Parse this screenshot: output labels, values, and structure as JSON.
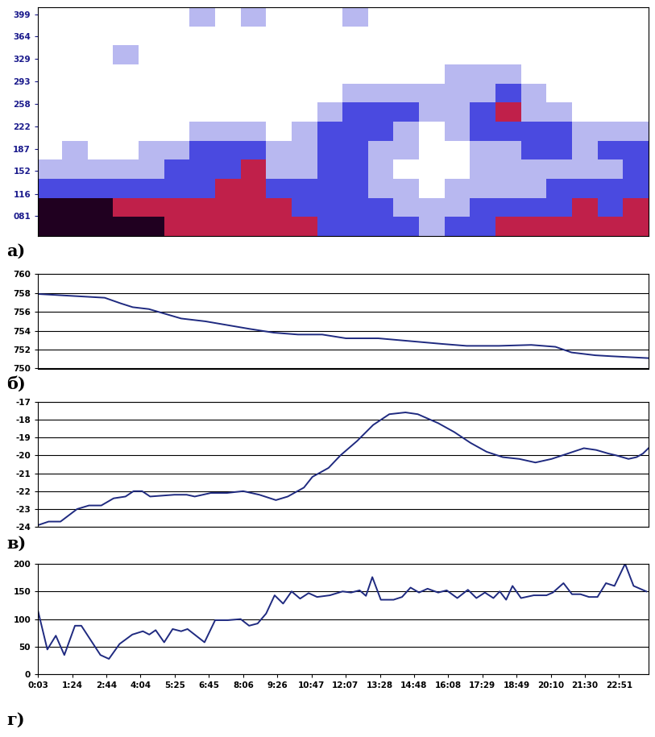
{
  "chart_data": [
    {
      "type": "heatmap",
      "title": "а)",
      "tick_labels": "y",
      "xlim": [
        3,
        1440
      ],
      "ylim": [
        50,
        410
      ],
      "yticks": [
        {
          "value": 81,
          "label": "081"
        },
        116,
        152,
        187,
        222,
        258,
        293,
        329,
        364,
        399
      ],
      "x_edges": [
        0,
        60,
        120,
        180,
        240,
        300,
        360,
        420,
        480,
        540,
        600,
        660,
        720,
        780,
        840,
        900,
        960,
        1020,
        1080,
        1140,
        1200,
        1260,
        1320,
        1380,
        1440
      ],
      "y_edges": [
        50,
        80,
        110,
        140,
        170,
        200,
        230,
        260,
        290,
        320,
        350,
        380,
        410
      ],
      "colors": [
        "#ffffff",
        "#b8b8f0",
        "#4a4ae0",
        "#c0204a",
        "#200020"
      ],
      "cells": [
        [
          4,
          4,
          2,
          1,
          0,
          0,
          0,
          0,
          0,
          0,
          0,
          0
        ],
        [
          4,
          4,
          2,
          1,
          1,
          0,
          0,
          0,
          0,
          0,
          0,
          0
        ],
        [
          4,
          4,
          2,
          1,
          0,
          0,
          0,
          0,
          0,
          0,
          0,
          0
        ],
        [
          4,
          3,
          2,
          1,
          0,
          0,
          0,
          0,
          0,
          1,
          0,
          0
        ],
        [
          4,
          3,
          2,
          1,
          1,
          0,
          0,
          0,
          0,
          0,
          0,
          0
        ],
        [
          3,
          3,
          2,
          2,
          1,
          0,
          0,
          0,
          0,
          0,
          0,
          0
        ],
        [
          3,
          3,
          2,
          2,
          2,
          1,
          0,
          0,
          0,
          0,
          0,
          1
        ],
        [
          3,
          3,
          3,
          2,
          2,
          1,
          0,
          0,
          0,
          0,
          0,
          0
        ],
        [
          3,
          3,
          3,
          3,
          2,
          1,
          0,
          0,
          0,
          0,
          0,
          1
        ],
        [
          3,
          3,
          2,
          1,
          1,
          0,
          0,
          0,
          0,
          0,
          0,
          0
        ],
        [
          3,
          2,
          2,
          1,
          1,
          1,
          0,
          0,
          0,
          0,
          0,
          0
        ],
        [
          2,
          2,
          2,
          2,
          2,
          2,
          1,
          0,
          0,
          0,
          0,
          0
        ],
        [
          2,
          2,
          2,
          2,
          2,
          2,
          2,
          1,
          0,
          0,
          0,
          1
        ],
        [
          2,
          2,
          1,
          1,
          1,
          2,
          2,
          1,
          0,
          0,
          0,
          0
        ],
        [
          2,
          1,
          1,
          0,
          1,
          1,
          2,
          1,
          0,
          0,
          0,
          0
        ],
        [
          1,
          1,
          0,
          0,
          0,
          0,
          1,
          1,
          0,
          0,
          0,
          0
        ],
        [
          2,
          1,
          1,
          0,
          0,
          1,
          1,
          1,
          1,
          0,
          0,
          0
        ],
        [
          2,
          2,
          1,
          1,
          1,
          2,
          2,
          1,
          1,
          0,
          0,
          0
        ],
        [
          3,
          2,
          1,
          1,
          1,
          2,
          3,
          2,
          1,
          0,
          0,
          0
        ],
        [
          3,
          2,
          1,
          1,
          2,
          2,
          1,
          1,
          0,
          0,
          0,
          0
        ],
        [
          3,
          2,
          2,
          1,
          2,
          2,
          1,
          0,
          0,
          0,
          0,
          0
        ],
        [
          3,
          3,
          2,
          1,
          1,
          1,
          0,
          0,
          0,
          0,
          0,
          0
        ],
        [
          3,
          2,
          2,
          1,
          2,
          1,
          0,
          0,
          0,
          0,
          0,
          0
        ],
        [
          3,
          3,
          2,
          2,
          2,
          1,
          0,
          0,
          0,
          0,
          0,
          0
        ]
      ]
    },
    {
      "type": "line",
      "title": "б)",
      "tick_labels": "y",
      "grid": true,
      "color": "#1f2a80",
      "xlim": [
        3,
        1440
      ],
      "ylim": [
        750,
        760
      ],
      "yticks": [
        750,
        752,
        754,
        756,
        758,
        760
      ],
      "x": [
        3,
        160,
        198,
        226,
        264,
        340,
        397,
        501,
        558,
        615,
        672,
        728,
        804,
        880,
        956,
        1012,
        1088,
        1164,
        1221,
        1259,
        1315,
        1353,
        1440
      ],
      "values": [
        757.9,
        757.5,
        756.9,
        756.5,
        756.3,
        755.3,
        755.0,
        754.2,
        753.8,
        753.6,
        753.6,
        753.2,
        753.2,
        752.9,
        752.6,
        752.4,
        752.4,
        752.5,
        752.3,
        751.7,
        751.4,
        751.3,
        751.1
      ]
    },
    {
      "type": "line",
      "title": "в)",
      "tick_labels": "y",
      "grid": true,
      "color": "#1f2a80",
      "xlim": [
        3,
        1440
      ],
      "ylim": [
        -24,
        -17
      ],
      "yticks": [
        -24,
        -23,
        -22,
        -21,
        -20,
        -19,
        -18,
        -17
      ],
      "x": [
        3,
        28,
        56,
        95,
        123,
        152,
        181,
        209,
        228,
        248,
        267,
        324,
        353,
        372,
        410,
        448,
        486,
        524,
        563,
        591,
        629,
        649,
        687,
        715,
        754,
        792,
        830,
        868,
        897,
        945,
        983,
        1021,
        1059,
        1097,
        1136,
        1174,
        1212,
        1250,
        1288,
        1317,
        1346,
        1364,
        1393,
        1412,
        1427,
        1440
      ],
      "values": [
        -23.9,
        -23.7,
        -23.7,
        -23.0,
        -22.8,
        -22.8,
        -22.4,
        -22.3,
        -22.0,
        -22.0,
        -22.3,
        -22.2,
        -22.2,
        -22.3,
        -22.1,
        -22.1,
        -22.0,
        -22.2,
        -22.5,
        -22.3,
        -21.8,
        -21.2,
        -20.7,
        -20.0,
        -19.2,
        -18.3,
        -17.7,
        -17.6,
        -17.7,
        -18.2,
        -18.7,
        -19.3,
        -19.8,
        -20.1,
        -20.2,
        -20.4,
        -20.2,
        -19.9,
        -19.6,
        -19.7,
        -19.9,
        -20.0,
        -20.2,
        -20.1,
        -19.9,
        -19.6
      ]
    },
    {
      "type": "line",
      "title": "г)",
      "grid": true,
      "color": "#1f2a80",
      "xlim": [
        3,
        1440
      ],
      "ylim": [
        0,
        200
      ],
      "yticks": [
        0,
        50,
        100,
        150,
        200
      ],
      "xticks": [
        {
          "value": 3,
          "label": "0:03"
        },
        {
          "value": 84,
          "label": "1:24"
        },
        {
          "value": 164,
          "label": "2:44"
        },
        {
          "value": 244,
          "label": "4:04"
        },
        {
          "value": 325,
          "label": "5:25"
        },
        {
          "value": 405,
          "label": "6:45"
        },
        {
          "value": 486,
          "label": "8:06"
        },
        {
          "value": 566,
          "label": "9:26"
        },
        {
          "value": 647,
          "label": "10:47"
        },
        {
          "value": 727,
          "label": "12:07"
        },
        {
          "value": 808,
          "label": "13:28"
        },
        {
          "value": 888,
          "label": "14:48"
        },
        {
          "value": 968,
          "label": "16:08"
        },
        {
          "value": 1049,
          "label": "17:29"
        },
        {
          "value": 1129,
          "label": "18:49"
        },
        {
          "value": 1210,
          "label": "20:10"
        },
        {
          "value": 1290,
          "label": "21:30"
        },
        {
          "value": 1371,
          "label": "22:51"
        }
      ],
      "x": [
        3,
        25,
        45,
        65,
        90,
        105,
        150,
        170,
        195,
        225,
        250,
        265,
        280,
        300,
        320,
        340,
        355,
        375,
        395,
        420,
        450,
        480,
        500,
        520,
        540,
        560,
        580,
        600,
        620,
        640,
        660,
        690,
        720,
        740,
        760,
        775,
        790,
        810,
        840,
        860,
        880,
        900,
        920,
        945,
        965,
        990,
        1015,
        1035,
        1055,
        1075,
        1090,
        1105,
        1120,
        1140,
        1170,
        1200,
        1215,
        1240,
        1260,
        1280,
        1300,
        1320,
        1340,
        1360,
        1385,
        1405,
        1435
      ],
      "values": [
        115,
        45,
        70,
        35,
        88,
        88,
        35,
        28,
        55,
        72,
        78,
        72,
        80,
        58,
        82,
        78,
        82,
        70,
        58,
        98,
        98,
        100,
        88,
        92,
        110,
        143,
        128,
        150,
        137,
        147,
        140,
        143,
        150,
        148,
        152,
        142,
        176,
        135,
        135,
        140,
        157,
        148,
        155,
        148,
        152,
        138,
        153,
        138,
        148,
        138,
        150,
        135,
        160,
        138,
        143,
        143,
        148,
        165,
        145,
        145,
        140,
        140,
        165,
        160,
        200,
        160,
        150
      ]
    }
  ]
}
